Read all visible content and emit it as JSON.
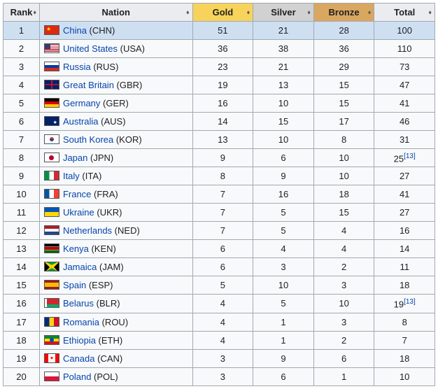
{
  "headers": {
    "rank": "Rank",
    "nation": "Nation",
    "gold": "Gold",
    "silver": "Silver",
    "bronze": "Bronze",
    "total": "Total"
  },
  "header_colors": {
    "default": "#eaecf0",
    "gold": "#f7d35b",
    "silver": "#d1d1d1",
    "bronze": "#d9a760"
  },
  "highlight_bg": "#cedff2",
  "link_color": "#0645ad",
  "rows": [
    {
      "rank": 1,
      "flag": "chn",
      "name": "China",
      "code": "CHN",
      "gold": 51,
      "silver": 21,
      "bronze": 28,
      "total": 100,
      "highlight": true
    },
    {
      "rank": 2,
      "flag": "usa",
      "name": "United States",
      "code": "USA",
      "gold": 36,
      "silver": 38,
      "bronze": 36,
      "total": 110
    },
    {
      "rank": 3,
      "flag": "rus",
      "name": "Russia",
      "code": "RUS",
      "gold": 23,
      "silver": 21,
      "bronze": 29,
      "total": 73
    },
    {
      "rank": 4,
      "flag": "gbr",
      "name": "Great Britain",
      "code": "GBR",
      "gold": 19,
      "silver": 13,
      "bronze": 15,
      "total": 47
    },
    {
      "rank": 5,
      "flag": "ger",
      "name": "Germany",
      "code": "GER",
      "gold": 16,
      "silver": 10,
      "bronze": 15,
      "total": 41
    },
    {
      "rank": 6,
      "flag": "aus",
      "name": "Australia",
      "code": "AUS",
      "gold": 14,
      "silver": 15,
      "bronze": 17,
      "total": 46
    },
    {
      "rank": 7,
      "flag": "kor",
      "name": "South Korea",
      "code": "KOR",
      "gold": 13,
      "silver": 10,
      "bronze": 8,
      "total": 31
    },
    {
      "rank": 8,
      "flag": "jpn",
      "name": "Japan",
      "code": "JPN",
      "gold": 9,
      "silver": 6,
      "bronze": 10,
      "total": 25,
      "note": "[13]"
    },
    {
      "rank": 9,
      "flag": "ita",
      "name": "Italy",
      "code": "ITA",
      "gold": 8,
      "silver": 9,
      "bronze": 10,
      "total": 27
    },
    {
      "rank": 10,
      "flag": "fra",
      "name": "France",
      "code": "FRA",
      "gold": 7,
      "silver": 16,
      "bronze": 18,
      "total": 41
    },
    {
      "rank": 11,
      "flag": "ukr",
      "name": "Ukraine",
      "code": "UKR",
      "gold": 7,
      "silver": 5,
      "bronze": 15,
      "total": 27
    },
    {
      "rank": 12,
      "flag": "ned",
      "name": "Netherlands",
      "code": "NED",
      "gold": 7,
      "silver": 5,
      "bronze": 4,
      "total": 16
    },
    {
      "rank": 13,
      "flag": "ken",
      "name": "Kenya",
      "code": "KEN",
      "gold": 6,
      "silver": 4,
      "bronze": 4,
      "total": 14
    },
    {
      "rank": 14,
      "flag": "jam",
      "name": "Jamaica",
      "code": "JAM",
      "gold": 6,
      "silver": 3,
      "bronze": 2,
      "total": 11
    },
    {
      "rank": 15,
      "flag": "esp",
      "name": "Spain",
      "code": "ESP",
      "gold": 5,
      "silver": 10,
      "bronze": 3,
      "total": 18
    },
    {
      "rank": 16,
      "flag": "blr",
      "name": "Belarus",
      "code": "BLR",
      "gold": 4,
      "silver": 5,
      "bronze": 10,
      "total": 19,
      "note": "[13]"
    },
    {
      "rank": 17,
      "flag": "rou",
      "name": "Romania",
      "code": "ROU",
      "gold": 4,
      "silver": 1,
      "bronze": 3,
      "total": 8
    },
    {
      "rank": 18,
      "flag": "eth",
      "name": "Ethiopia",
      "code": "ETH",
      "gold": 4,
      "silver": 1,
      "bronze": 2,
      "total": 7
    },
    {
      "rank": 19,
      "flag": "can",
      "name": "Canada",
      "code": "CAN",
      "gold": 3,
      "silver": 9,
      "bronze": 6,
      "total": 18
    },
    {
      "rank": 20,
      "flag": "pol",
      "name": "Poland",
      "code": "POL",
      "gold": 3,
      "silver": 6,
      "bronze": 1,
      "total": 10
    }
  ]
}
